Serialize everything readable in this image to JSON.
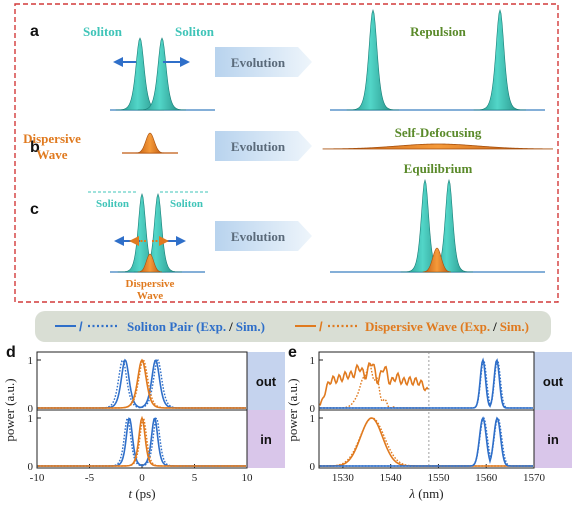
{
  "colors": {
    "teal": "#3fc4b8",
    "teal_dark": "#1a7f78",
    "orange": "#e07a1f",
    "blue": "#2f6fc9",
    "dash_red": "#d23a3a",
    "arrow_fill": "#c5dcf0",
    "legend_bg": "#d9ded4",
    "out_bg": "#c5d3ee",
    "in_bg": "#d9c6ea",
    "green_text": "#5a8a2a"
  },
  "schematic": {
    "panels": {
      "a": "a",
      "b": "b",
      "c": "c"
    },
    "a": {
      "left_label": "Soliton",
      "right_label": "Soliton",
      "arrow": "Evolution",
      "result": "Repulsion"
    },
    "b": {
      "label_line1": "Dispersive",
      "label_line2": "Wave",
      "arrow": "Evolution",
      "result": "Self-Defocusing"
    },
    "c": {
      "left_label": "Soliton",
      "right_label": "Soliton",
      "dw_line1": "Dispersive",
      "dw_line2": "Wave",
      "arrow": "Evolution",
      "result": "Equilibrium"
    }
  },
  "legend": {
    "soliton_sym": "/",
    "soliton_text": "Soliton Pair (Exp.",
    "soliton_slash": "/",
    "soliton_sim": "Sim.)",
    "dw_sym": "/",
    "dw_text": "Dispersive Wave (Exp.",
    "dw_slash": "/",
    "dw_sim": "Sim.)"
  },
  "chart_data": [
    {
      "panel": "d",
      "type": "line",
      "xlabel_var": "t",
      "xlabel_unit": " (ps)",
      "ylabel": "power (a.u.)",
      "xlim": [
        -10,
        10
      ],
      "xticks": [
        "-10",
        "-5",
        "0",
        "5",
        "10"
      ],
      "rows": {
        "top": "out",
        "bottom": "in"
      },
      "yticks": [
        "0",
        "1"
      ],
      "series": [
        {
          "row": "out",
          "color": "blue",
          "peaks": [
            {
              "c": -1.6,
              "w": 0.5
            },
            {
              "c": 1.3,
              "w": 0.5
            }
          ]
        },
        {
          "row": "out",
          "color": "orange",
          "peaks": [
            {
              "c": 0.0,
              "w": 0.55
            }
          ]
        },
        {
          "row": "in",
          "color": "blue",
          "peaks": [
            {
              "c": -1.2,
              "w": 0.4
            },
            {
              "c": 1.2,
              "w": 0.4
            }
          ]
        },
        {
          "row": "in",
          "color": "orange",
          "peaks": [
            {
              "c": 0.0,
              "w": 0.4
            }
          ]
        }
      ]
    },
    {
      "panel": "e",
      "type": "line",
      "xlabel_var": "λ",
      "xlabel_unit": " (nm)",
      "ylabel": "power (a.u.)",
      "xlim": [
        1525,
        1570
      ],
      "xticks": [
        "1530",
        "1540",
        "1550",
        "1560",
        "1570"
      ],
      "rows": {
        "top": "out",
        "bottom": "in"
      },
      "yticks": [
        "0",
        "1"
      ],
      "series": [
        {
          "row": "out",
          "color": "orange",
          "range": [
            1525,
            1548
          ]
        },
        {
          "row": "out",
          "color": "blue",
          "peaks": [
            {
              "c": 1559.3,
              "w": 0.55
            },
            {
              "c": 1562.2,
              "w": 0.55
            }
          ]
        },
        {
          "row": "in",
          "color": "orange",
          "peaks": [
            {
              "c": 1536,
              "w": 2.3
            }
          ]
        },
        {
          "row": "in",
          "color": "blue",
          "peaks": [
            {
              "c": 1559.3,
              "w": 0.7
            },
            {
              "c": 1562.3,
              "w": 0.7
            }
          ]
        }
      ]
    }
  ]
}
